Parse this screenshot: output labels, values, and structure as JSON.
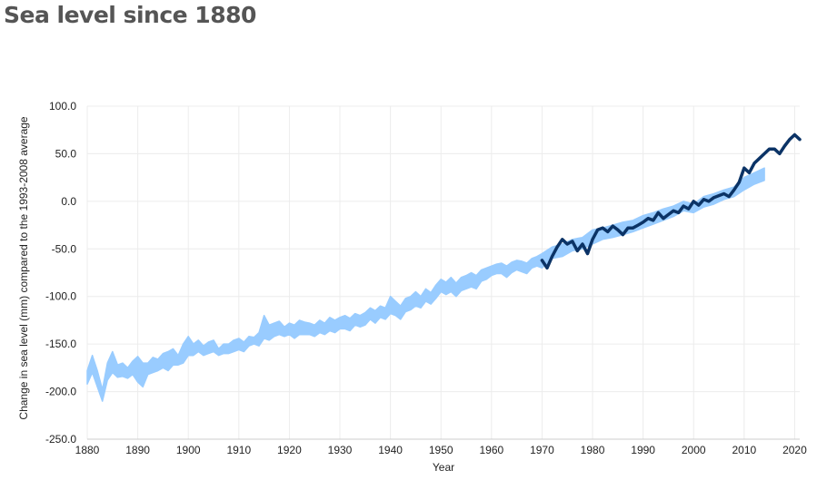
{
  "page": {
    "title": "Sea level since 1880"
  },
  "colors": {
    "background": "#ffffff",
    "grid": "#ececec",
    "axis": "#cccccc",
    "reconstruction": "#99ccff",
    "satellite": "#0b3366"
  },
  "chart_data": {
    "type": "area",
    "title": "Sea level since 1880",
    "xlabel": "Year",
    "ylabel": "Change in sea level (mm) compared to the 1993-2008 average",
    "xlim": [
      1880,
      2021
    ],
    "ylim": [
      -250,
      100
    ],
    "xticks": [
      "1880",
      "1890",
      "1900",
      "1910",
      "1920",
      "1930",
      "1940",
      "1950",
      "1960",
      "1970",
      "1980",
      "1990",
      "2000",
      "2010",
      "2020"
    ],
    "yticks": [
      "100.0",
      "50.0",
      "0.0",
      "-50.0",
      "-100.0",
      "-150.0",
      "-200.0",
      "-250.0"
    ],
    "grid": true,
    "legend": "none",
    "series": [
      {
        "type": "band",
        "x": [
          1880,
          1881,
          1882,
          1883,
          1884,
          1885,
          1886,
          1887,
          1888,
          1889,
          1890,
          1891,
          1892,
          1893,
          1894,
          1895,
          1896,
          1897,
          1898,
          1899,
          1900,
          1901,
          1902,
          1903,
          1904,
          1905,
          1906,
          1907,
          1908,
          1909,
          1910,
          1911,
          1912,
          1913,
          1914,
          1915,
          1916,
          1917,
          1918,
          1919,
          1920,
          1921,
          1922,
          1923,
          1924,
          1925,
          1926,
          1927,
          1928,
          1929,
          1930,
          1931,
          1932,
          1933,
          1934,
          1935,
          1936,
          1937,
          1938,
          1939,
          1940,
          1941,
          1942,
          1943,
          1944,
          1945,
          1946,
          1947,
          1948,
          1949,
          1950,
          1951,
          1952,
          1953,
          1954,
          1955,
          1956,
          1957,
          1958,
          1959,
          1960,
          1961,
          1962,
          1963,
          1964,
          1965,
          1966,
          1967,
          1968,
          1969,
          1970,
          1972,
          1974,
          1976,
          1978,
          1980,
          1982,
          1984,
          1986,
          1988,
          1990,
          1992,
          1994,
          1996,
          1998,
          2000,
          2002,
          2004,
          2006,
          2008,
          2010,
          2012,
          2014
        ],
        "upper": [
          -178,
          -162,
          -178,
          -198,
          -170,
          -158,
          -172,
          -170,
          -175,
          -168,
          -163,
          -170,
          -170,
          -164,
          -166,
          -160,
          -158,
          -155,
          -162,
          -150,
          -142,
          -150,
          -146,
          -152,
          -148,
          -146,
          -155,
          -150,
          -150,
          -146,
          -144,
          -148,
          -142,
          -143,
          -138,
          -120,
          -130,
          -128,
          -126,
          -132,
          -128,
          -130,
          -125,
          -127,
          -128,
          -130,
          -125,
          -128,
          -122,
          -125,
          -122,
          -120,
          -123,
          -118,
          -120,
          -117,
          -112,
          -115,
          -110,
          -112,
          -100,
          -105,
          -110,
          -102,
          -100,
          -95,
          -100,
          -92,
          -96,
          -88,
          -82,
          -85,
          -80,
          -86,
          -80,
          -78,
          -75,
          -78,
          -72,
          -70,
          -68,
          -66,
          -65,
          -68,
          -64,
          -62,
          -63,
          -65,
          -60,
          -58,
          -55,
          -48,
          -45,
          -40,
          -38,
          -30,
          -28,
          -25,
          -22,
          -20,
          -15,
          -12,
          -8,
          -5,
          0,
          -3,
          5,
          8,
          12,
          15,
          25,
          30,
          35
        ],
        "lower": [
          -192,
          -180,
          -195,
          -210,
          -188,
          -180,
          -185,
          -184,
          -186,
          -182,
          -190,
          -195,
          -182,
          -180,
          -178,
          -175,
          -178,
          -172,
          -172,
          -170,
          -162,
          -162,
          -158,
          -162,
          -160,
          -158,
          -162,
          -160,
          -160,
          -158,
          -156,
          -158,
          -152,
          -150,
          -152,
          -144,
          -146,
          -142,
          -140,
          -142,
          -140,
          -144,
          -140,
          -140,
          -140,
          -142,
          -138,
          -140,
          -136,
          -138,
          -134,
          -134,
          -136,
          -130,
          -132,
          -130,
          -124,
          -128,
          -122,
          -124,
          -118,
          -120,
          -124,
          -116,
          -114,
          -110,
          -112,
          -105,
          -108,
          -102,
          -95,
          -98,
          -95,
          -100,
          -94,
          -92,
          -90,
          -92,
          -84,
          -82,
          -78,
          -76,
          -76,
          -80,
          -75,
          -72,
          -74,
          -76,
          -70,
          -68,
          -70,
          -60,
          -58,
          -52,
          -50,
          -45,
          -40,
          -38,
          -35,
          -32,
          -28,
          -24,
          -20,
          -16,
          -10,
          -12,
          -6,
          -3,
          2,
          5,
          12,
          18,
          22
        ]
      },
      {
        "type": "line",
        "x": [
          1970,
          1971,
          1972,
          1973,
          1974,
          1975,
          1976,
          1977,
          1978,
          1979,
          1980,
          1981,
          1982,
          1983,
          1984,
          1985,
          1986,
          1987,
          1988,
          1989,
          1990,
          1991,
          1992,
          1993,
          1994,
          1995,
          1996,
          1997,
          1998,
          1999,
          2000,
          2001,
          2002,
          2003,
          2004,
          2005,
          2006,
          2007,
          2008,
          2009,
          2010,
          2011,
          2012,
          2013,
          2014,
          2015,
          2016,
          2017,
          2018,
          2019,
          2020,
          2021
        ],
        "y": [
          -62,
          -70,
          -58,
          -48,
          -40,
          -45,
          -42,
          -52,
          -45,
          -55,
          -40,
          -30,
          -28,
          -32,
          -26,
          -30,
          -35,
          -28,
          -28,
          -25,
          -22,
          -18,
          -20,
          -12,
          -18,
          -14,
          -10,
          -12,
          -5,
          -8,
          0,
          -4,
          2,
          0,
          4,
          6,
          8,
          5,
          12,
          20,
          35,
          30,
          40,
          45,
          50,
          55,
          55,
          50,
          58,
          65,
          70,
          65
        ]
      }
    ]
  }
}
